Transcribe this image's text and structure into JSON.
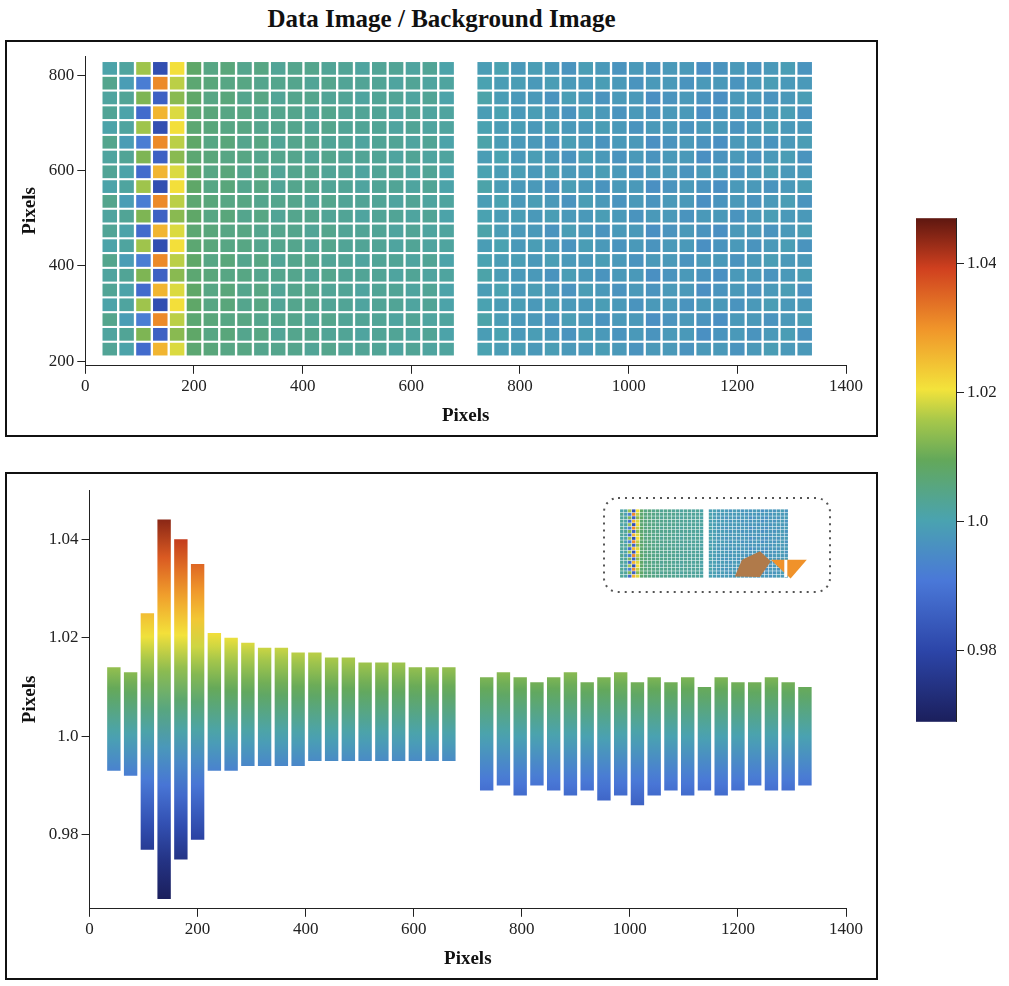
{
  "chart_data": [
    {
      "type": "heatmap",
      "title": "Data Image / Background Image",
      "x_label": "Pixels",
      "y_label": "Pixels",
      "xlim": [
        0,
        1400
      ],
      "xticks": [
        0,
        200,
        400,
        600,
        800,
        1000,
        1200,
        1400
      ],
      "ylim": [
        190,
        840
      ],
      "yticks": [
        200,
        400,
        600,
        800
      ],
      "grid": false,
      "x": [
        45,
        76,
        107,
        138,
        169,
        200,
        231,
        262,
        293,
        324,
        355,
        386,
        417,
        448,
        479,
        510,
        541,
        572,
        603,
        634,
        665,
        735,
        766,
        797,
        828,
        859,
        890,
        921,
        952,
        983,
        1014,
        1045,
        1076,
        1107,
        1138,
        1169,
        1200,
        1231,
        1262,
        1293,
        1324
      ],
      "y": [
        225,
        256,
        287,
        318,
        349,
        380,
        411,
        442,
        473,
        504,
        535,
        566,
        597,
        628,
        659,
        690,
        721,
        752,
        783,
        814
      ],
      "cells": [
        [
          1.003,
          1.001,
          0.988,
          1.026,
          1.019,
          1.007,
          1.006,
          1.005,
          1.005,
          1.004,
          1.004,
          1.004,
          1.003,
          1.004,
          1.003,
          1.003,
          1.003,
          1.002,
          1.003,
          1.002,
          1.002,
          1.0,
          0.999,
          0.999,
          0.998,
          0.999,
          0.998,
          0.998,
          0.999,
          0.998,
          0.997,
          0.998,
          0.998,
          0.997,
          0.998,
          0.998,
          0.997,
          0.998,
          0.999,
          0.998,
          0.998
        ],
        [
          1.002,
          1.003,
          1.012,
          0.986,
          1.013,
          1.008,
          1.005,
          1.006,
          1.004,
          1.005,
          1.003,
          1.004,
          1.004,
          1.003,
          1.003,
          1.002,
          1.003,
          1.003,
          1.002,
          1.003,
          1.001,
          0.999,
          1.0,
          0.998,
          0.999,
          0.998,
          0.997,
          0.999,
          0.998,
          0.997,
          0.998,
          0.997,
          0.998,
          0.998,
          0.996,
          0.997,
          0.998,
          0.997,
          0.998,
          0.999,
          0.997
        ],
        [
          1.004,
          0.999,
          0.992,
          1.031,
          1.017,
          1.007,
          1.006,
          1.005,
          1.005,
          1.004,
          1.004,
          1.004,
          1.003,
          1.004,
          1.003,
          1.003,
          1.003,
          1.002,
          1.003,
          1.002,
          1.002,
          1.001,
          0.999,
          0.998,
          0.998,
          0.997,
          0.999,
          0.998,
          0.997,
          0.998,
          0.998,
          0.996,
          0.997,
          0.998,
          0.997,
          0.996,
          0.998,
          0.998,
          0.997,
          0.998,
          0.999
        ],
        [
          1.001,
          1.002,
          1.015,
          0.982,
          1.021,
          1.008,
          1.005,
          1.006,
          1.004,
          1.005,
          1.003,
          1.004,
          1.004,
          1.003,
          1.003,
          1.002,
          1.003,
          1.003,
          1.002,
          1.003,
          1.001,
          1.0,
          0.999,
          0.999,
          0.998,
          0.999,
          0.998,
          0.998,
          0.999,
          0.998,
          0.997,
          0.998,
          0.998,
          0.997,
          0.998,
          0.998,
          0.997,
          0.998,
          0.999,
          0.998,
          0.998
        ],
        [
          1.003,
          1.001,
          0.988,
          1.026,
          1.019,
          1.008,
          1.005,
          1.006,
          1.004,
          1.005,
          1.003,
          1.004,
          1.004,
          1.003,
          1.003,
          1.002,
          1.003,
          1.003,
          1.002,
          1.003,
          1.001,
          0.999,
          1.0,
          0.998,
          0.999,
          0.998,
          0.997,
          0.999,
          0.998,
          0.997,
          0.998,
          0.997,
          0.998,
          0.998,
          0.996,
          0.997,
          0.998,
          0.997,
          0.998,
          0.999,
          0.997
        ],
        [
          1.002,
          1.003,
          1.012,
          0.986,
          1.013,
          1.007,
          1.006,
          1.005,
          1.005,
          1.004,
          1.004,
          1.004,
          1.003,
          1.004,
          1.003,
          1.003,
          1.003,
          1.002,
          1.003,
          1.002,
          1.002,
          1.001,
          0.999,
          0.998,
          0.998,
          0.997,
          0.999,
          0.998,
          0.997,
          0.998,
          0.998,
          0.996,
          0.997,
          0.998,
          0.997,
          0.996,
          0.998,
          0.998,
          0.997,
          0.998,
          0.999
        ],
        [
          1.004,
          0.999,
          0.992,
          1.031,
          1.017,
          1.008,
          1.005,
          1.006,
          1.004,
          1.005,
          1.003,
          1.004,
          1.004,
          1.003,
          1.003,
          1.002,
          1.003,
          1.003,
          1.002,
          1.003,
          1.001,
          1.0,
          0.999,
          0.999,
          0.998,
          0.999,
          0.998,
          0.998,
          0.999,
          0.998,
          0.997,
          0.998,
          0.998,
          0.997,
          0.998,
          0.998,
          0.997,
          0.998,
          0.999,
          0.998,
          0.998
        ],
        [
          1.001,
          1.002,
          1.015,
          0.982,
          1.021,
          1.007,
          1.006,
          1.005,
          1.005,
          1.004,
          1.004,
          1.004,
          1.003,
          1.004,
          1.003,
          1.003,
          1.003,
          1.002,
          1.003,
          1.002,
          1.002,
          0.999,
          1.0,
          0.998,
          0.999,
          0.998,
          0.997,
          0.999,
          0.998,
          0.997,
          0.998,
          0.997,
          0.998,
          0.998,
          0.996,
          0.997,
          0.998,
          0.997,
          0.998,
          0.999,
          0.997
        ],
        [
          1.003,
          1.001,
          0.988,
          1.026,
          1.019,
          1.007,
          1.006,
          1.005,
          1.005,
          1.004,
          1.004,
          1.004,
          1.003,
          1.004,
          1.003,
          1.003,
          1.003,
          1.002,
          1.003,
          1.002,
          1.002,
          1.001,
          0.999,
          0.998,
          0.998,
          0.997,
          0.999,
          0.998,
          0.997,
          0.998,
          0.998,
          0.996,
          0.997,
          0.998,
          0.997,
          0.996,
          0.998,
          0.998,
          0.997,
          0.998,
          0.999
        ],
        [
          1.002,
          1.003,
          1.012,
          0.986,
          1.013,
          1.008,
          1.005,
          1.006,
          1.004,
          1.005,
          1.003,
          1.004,
          1.004,
          1.003,
          1.003,
          1.002,
          1.003,
          1.003,
          1.002,
          1.003,
          1.001,
          1.0,
          0.999,
          0.999,
          0.998,
          0.999,
          0.998,
          0.998,
          0.999,
          0.998,
          0.997,
          0.998,
          0.998,
          0.997,
          0.998,
          0.998,
          0.997,
          0.998,
          0.999,
          0.998,
          0.998
        ],
        [
          1.004,
          0.999,
          0.992,
          1.031,
          1.017,
          1.007,
          1.006,
          1.005,
          1.005,
          1.004,
          1.004,
          1.004,
          1.003,
          1.004,
          1.003,
          1.003,
          1.003,
          1.002,
          1.003,
          1.002,
          1.002,
          0.999,
          1.0,
          0.998,
          0.999,
          0.998,
          0.997,
          0.999,
          0.998,
          0.997,
          0.998,
          0.997,
          0.998,
          0.998,
          0.996,
          0.997,
          0.998,
          0.997,
          0.998,
          0.999,
          0.997
        ],
        [
          1.001,
          1.002,
          1.015,
          0.982,
          1.021,
          1.008,
          1.005,
          1.006,
          1.004,
          1.005,
          1.003,
          1.004,
          1.004,
          1.003,
          1.003,
          1.002,
          1.003,
          1.003,
          1.002,
          1.003,
          1.001,
          1.001,
          0.999,
          0.998,
          0.998,
          0.997,
          0.999,
          0.998,
          0.997,
          0.998,
          0.998,
          0.996,
          0.997,
          0.998,
          0.997,
          0.996,
          0.998,
          0.998,
          0.997,
          0.998,
          0.999
        ],
        [
          1.003,
          1.001,
          0.988,
          1.026,
          1.019,
          1.008,
          1.005,
          1.006,
          1.004,
          1.005,
          1.003,
          1.004,
          1.004,
          1.003,
          1.003,
          1.002,
          1.003,
          1.003,
          1.002,
          1.003,
          1.001,
          1.0,
          0.999,
          0.999,
          0.998,
          0.999,
          0.998,
          0.998,
          0.999,
          0.998,
          0.997,
          0.998,
          0.998,
          0.997,
          0.998,
          0.998,
          0.997,
          0.998,
          0.999,
          0.998,
          0.998
        ],
        [
          1.002,
          1.003,
          1.012,
          0.986,
          1.013,
          1.007,
          1.006,
          1.005,
          1.005,
          1.004,
          1.004,
          1.004,
          1.003,
          1.004,
          1.003,
          1.003,
          1.003,
          1.002,
          1.003,
          1.002,
          1.002,
          0.999,
          1.0,
          0.998,
          0.999,
          0.998,
          0.997,
          0.999,
          0.998,
          0.997,
          0.998,
          0.997,
          0.998,
          0.998,
          0.996,
          0.997,
          0.998,
          0.997,
          0.998,
          0.999,
          0.997
        ],
        [
          1.004,
          0.999,
          0.992,
          1.031,
          1.017,
          1.008,
          1.005,
          1.006,
          1.004,
          1.005,
          1.003,
          1.004,
          1.004,
          1.003,
          1.003,
          1.002,
          1.003,
          1.003,
          1.002,
          1.003,
          1.001,
          1.001,
          0.999,
          0.998,
          0.998,
          0.997,
          0.999,
          0.998,
          0.997,
          0.998,
          0.998,
          0.996,
          0.997,
          0.998,
          0.997,
          0.996,
          0.998,
          0.998,
          0.997,
          0.998,
          0.999
        ],
        [
          1.001,
          1.002,
          1.015,
          0.982,
          1.021,
          1.007,
          1.006,
          1.005,
          1.005,
          1.004,
          1.004,
          1.004,
          1.003,
          1.004,
          1.003,
          1.003,
          1.003,
          1.002,
          1.003,
          1.002,
          1.002,
          1.0,
          0.999,
          0.999,
          0.998,
          0.999,
          0.998,
          0.998,
          0.999,
          0.998,
          0.997,
          0.998,
          0.998,
          0.997,
          0.998,
          0.998,
          0.997,
          0.998,
          0.999,
          0.998,
          0.998
        ],
        [
          1.003,
          1.001,
          0.988,
          1.026,
          1.019,
          1.007,
          1.006,
          1.005,
          1.005,
          1.004,
          1.004,
          1.004,
          1.003,
          1.004,
          1.003,
          1.003,
          1.003,
          1.002,
          1.003,
          1.002,
          1.002,
          0.999,
          1.0,
          0.998,
          0.999,
          0.998,
          0.997,
          0.999,
          0.998,
          0.997,
          0.998,
          0.997,
          0.998,
          0.998,
          0.996,
          0.997,
          0.998,
          0.997,
          0.998,
          0.999,
          0.997
        ],
        [
          1.002,
          1.003,
          1.012,
          0.986,
          1.013,
          1.008,
          1.005,
          1.006,
          1.004,
          1.005,
          1.003,
          1.004,
          1.004,
          1.003,
          1.003,
          1.002,
          1.003,
          1.003,
          1.002,
          1.003,
          1.001,
          1.001,
          0.999,
          0.998,
          0.998,
          0.997,
          0.999,
          0.998,
          0.997,
          0.998,
          0.998,
          0.996,
          0.997,
          0.998,
          0.997,
          0.996,
          0.998,
          0.998,
          0.997,
          0.998,
          0.999
        ],
        [
          1.004,
          0.999,
          0.992,
          1.031,
          1.017,
          1.007,
          1.006,
          1.005,
          1.005,
          1.004,
          1.004,
          1.004,
          1.003,
          1.004,
          1.003,
          1.003,
          1.003,
          1.002,
          1.003,
          1.002,
          1.002,
          1.0,
          0.999,
          0.999,
          0.998,
          0.999,
          0.998,
          0.998,
          0.999,
          0.998,
          0.997,
          0.998,
          0.998,
          0.997,
          0.998,
          0.998,
          0.997,
          0.998,
          0.999,
          0.998,
          0.998
        ],
        [
          1.001,
          1.002,
          1.015,
          0.982,
          1.021,
          1.008,
          1.005,
          1.006,
          1.004,
          1.005,
          1.003,
          1.004,
          1.004,
          1.003,
          1.003,
          1.002,
          1.003,
          1.003,
          1.002,
          1.003,
          1.001,
          0.999,
          1.0,
          0.998,
          0.999,
          0.998,
          0.997,
          0.999,
          0.998,
          0.997,
          0.998,
          0.997,
          0.998,
          0.998,
          0.996,
          0.997,
          0.998,
          0.997,
          0.998,
          0.999,
          0.997
        ]
      ],
      "colorbar": {
        "range": [
          0.969,
          1.047
        ],
        "ticks": [
          0.98,
          {
            "value": 1,
            "label": "1.0"
          },
          1.02,
          1.04
        ]
      }
    },
    {
      "type": "bar",
      "x_label": "Pixels",
      "y_label": "Pixels",
      "xlim": [
        0,
        1400
      ],
      "xticks": [
        0,
        200,
        400,
        600,
        800,
        1000,
        1200,
        1400
      ],
      "ylim": [
        0.965,
        1.05
      ],
      "yticks": [
        0.98,
        {
          "value": 1,
          "label": "1.0"
        },
        1.02,
        1.04
      ],
      "grid": false,
      "x": [
        45,
        76,
        107,
        138,
        169,
        200,
        231,
        262,
        293,
        324,
        355,
        386,
        417,
        448,
        479,
        510,
        541,
        572,
        603,
        634,
        665,
        735,
        766,
        797,
        828,
        859,
        890,
        921,
        952,
        983,
        1014,
        1045,
        1076,
        1107,
        1138,
        1169,
        1200,
        1231,
        1262,
        1293,
        1324
      ],
      "values": [
        [
          0.993,
          1.014
        ],
        [
          0.992,
          1.013
        ],
        [
          0.977,
          1.025
        ],
        [
          0.967,
          1.044
        ],
        [
          0.975,
          1.04
        ],
        [
          0.979,
          1.035
        ],
        [
          0.993,
          1.021
        ],
        [
          0.993,
          1.02
        ],
        [
          0.994,
          1.019
        ],
        [
          0.994,
          1.018
        ],
        [
          0.994,
          1.018
        ],
        [
          0.994,
          1.017
        ],
        [
          0.995,
          1.017
        ],
        [
          0.995,
          1.016
        ],
        [
          0.995,
          1.016
        ],
        [
          0.995,
          1.015
        ],
        [
          0.995,
          1.015
        ],
        [
          0.995,
          1.015
        ],
        [
          0.995,
          1.014
        ],
        [
          0.995,
          1.014
        ],
        [
          0.995,
          1.014
        ],
        [
          0.989,
          1.012
        ],
        [
          0.99,
          1.013
        ],
        [
          0.988,
          1.012
        ],
        [
          0.99,
          1.011
        ],
        [
          0.989,
          1.012
        ],
        [
          0.988,
          1.013
        ],
        [
          0.989,
          1.011
        ],
        [
          0.987,
          1.012
        ],
        [
          0.988,
          1.013
        ],
        [
          0.986,
          1.011
        ],
        [
          0.988,
          1.012
        ],
        [
          0.989,
          1.011
        ],
        [
          0.988,
          1.012
        ],
        [
          0.989,
          1.01
        ],
        [
          0.988,
          1.012
        ],
        [
          0.989,
          1.011
        ],
        [
          0.99,
          1.011
        ],
        [
          0.989,
          1.012
        ],
        [
          0.989,
          1.011
        ],
        [
          0.99,
          1.01
        ]
      ]
    }
  ]
}
